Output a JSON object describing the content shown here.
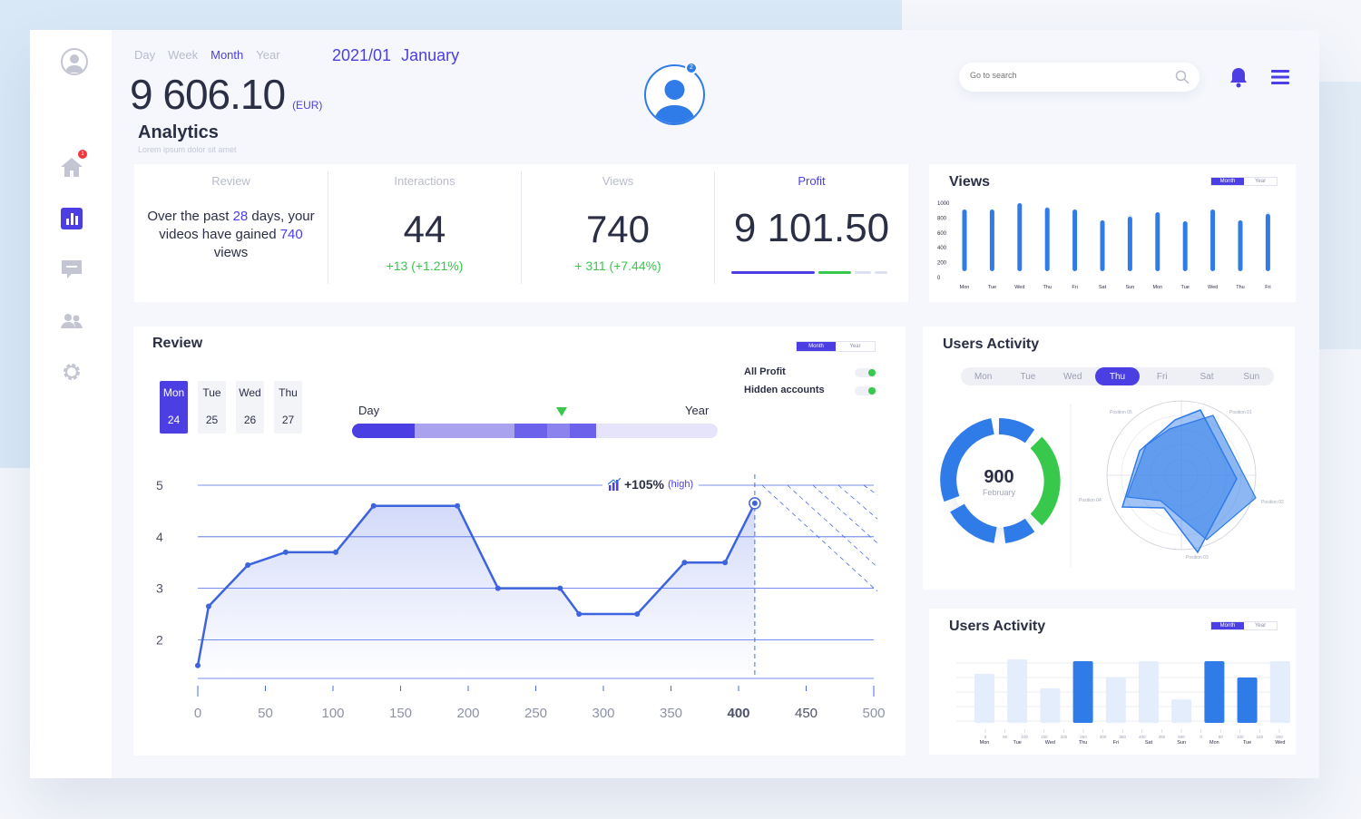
{
  "period_tabs": [
    "Day",
    "Week",
    "Month",
    "Year"
  ],
  "active_period": "Month",
  "date": {
    "ym": "2021/01",
    "month": "January"
  },
  "balance": {
    "value": "9 606.10",
    "currency": "(EUR)"
  },
  "analytics": {
    "title": "Analytics",
    "subtitle": "Lorem ipsum dolor sit amet"
  },
  "profile": {
    "badge": "2"
  },
  "search": {
    "placeholder": "Go to search"
  },
  "sidebar": {
    "home_badge": "1"
  },
  "stats": {
    "review": {
      "label": "Review",
      "line1a": "Over the past ",
      "days": "28",
      "line1b": " days, your",
      "line2a": "videos have gained ",
      "views": "740",
      "line3": "views"
    },
    "interactions": {
      "label": "Interactions",
      "value": "44",
      "delta": "+13 (+1.21%)"
    },
    "views": {
      "label": "Views",
      "value": "740",
      "delta": "+ 311 (+7.44%)"
    },
    "profit": {
      "label": "Profit",
      "value": "9 101.50",
      "bar_fill": 0.55
    }
  },
  "views_card": {
    "title": "Views",
    "toggle": [
      "Month",
      "Year"
    ],
    "y_ticks": [
      "1000",
      "800",
      "600",
      "400",
      "200",
      "0"
    ],
    "days": [
      "Mon",
      "Tue",
      "Wed",
      "Thu",
      "Fri",
      "Sat",
      "Sun",
      "Mon",
      "Tue",
      "Wed",
      "Thu",
      "Fri"
    ]
  },
  "review_card": {
    "title": "Review",
    "toggle": [
      "Month",
      "Year"
    ],
    "days": [
      {
        "d": "Mon",
        "n": "24"
      },
      {
        "d": "Tue",
        "n": "25"
      },
      {
        "d": "Wed",
        "n": "26"
      },
      {
        "d": "Thu",
        "n": "27"
      }
    ],
    "range_left": "Day",
    "range_right": "Year",
    "legend": [
      "All Profit",
      "Hidden accounts"
    ],
    "tooltip": {
      "value": "+105%",
      "note": "(high)"
    }
  },
  "chart_data": {
    "type": "line",
    "x": [
      0,
      8,
      37,
      65,
      102,
      130,
      192,
      222,
      268,
      282,
      325,
      360,
      390,
      412
    ],
    "y": [
      1.5,
      2.65,
      3.45,
      3.7,
      3.7,
      4.6,
      4.6,
      3.0,
      3.0,
      2.5,
      2.5,
      3.5,
      3.5,
      4.65
    ],
    "xlim": [
      0,
      500
    ],
    "ylim": [
      1.25,
      5
    ],
    "x_ticks": [
      0,
      50,
      100,
      150,
      200,
      250,
      300,
      350,
      400,
      450,
      500
    ],
    "y_ticks": [
      2,
      3,
      4,
      5
    ]
  },
  "activity": {
    "title": "Users Activity",
    "days": [
      "Mon",
      "Tue",
      "Wed",
      "Thu",
      "Fri",
      "Sat",
      "Sun"
    ],
    "active": "Thu",
    "donut": {
      "value": "900",
      "label": "February"
    },
    "radar_labels": [
      "Position 05",
      "Position 01",
      "Position 02",
      "Position 03",
      "Position 04"
    ]
  },
  "activity2": {
    "title": "Users Activity",
    "toggle": [
      "Month",
      "Year"
    ],
    "days": [
      "Mon",
      "Tue",
      "Wed",
      "Thu",
      "Fri",
      "Sat",
      "Sun",
      "Mon",
      "Tue",
      "Wed"
    ],
    "ticks": [
      "0",
      "50",
      "100",
      "150",
      "200",
      "250",
      "300",
      "350",
      "400",
      "450",
      "500",
      "0",
      "50",
      "100",
      "150",
      "200"
    ]
  },
  "colors": {
    "accent": "#4b3fe3",
    "blue": "#2f7be8",
    "green": "#37c84c"
  }
}
